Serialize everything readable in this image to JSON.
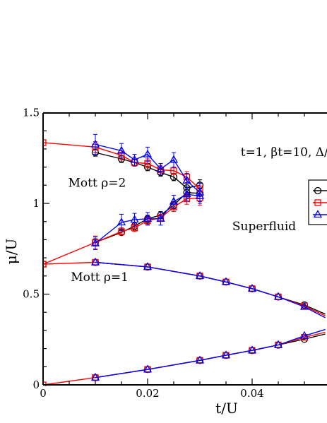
{
  "chart_data": {
    "type": "line",
    "xlabel": "t/U",
    "ylabel": "μ/U",
    "xlim": [
      0,
      0.054
    ],
    "ylim": [
      0,
      1.5
    ],
    "xticks": [
      {
        "v": 0,
        "label": "0"
      },
      {
        "v": 0.02,
        "label": "0.02"
      },
      {
        "v": 0.04,
        "label": "0.04"
      }
    ],
    "yticks": [
      {
        "v": 0,
        "label": "0"
      },
      {
        "v": 0.5,
        "label": "0.5"
      },
      {
        "v": 1,
        "label": "1"
      },
      {
        "v": 1.5,
        "label": "1.5"
      }
    ],
    "annotations": [
      {
        "text": "t=1, βt=10, Δ/",
        "x": 0.0378,
        "y": 1.285,
        "size": 17
      },
      {
        "text": "Mott ρ=2",
        "x": 0.0048,
        "y": 1.115,
        "size": 17
      },
      {
        "text": "Superfluid",
        "x": 0.0362,
        "y": 0.875,
        "size": 17
      },
      {
        "text": "Mott ρ=1",
        "x": 0.0053,
        "y": 0.595,
        "size": 17
      }
    ],
    "series": [
      {
        "marker": "circle",
        "color": "#000000",
        "lines": [
          [
            [
              0.01,
              1.28
            ],
            [
              0.015,
              1.245
            ],
            [
              0.0175,
              1.225
            ],
            [
              0.02,
              1.2
            ],
            [
              0.0225,
              1.17
            ],
            [
              0.025,
              1.145
            ],
            [
              0.0275,
              1.085
            ],
            [
              0.03,
              1.1
            ]
          ],
          [
            [
              0.01,
              0.785
            ],
            [
              0.015,
              0.84
            ],
            [
              0.0175,
              0.875
            ],
            [
              0.02,
              0.915
            ],
            [
              0.0225,
              0.935
            ],
            [
              0.025,
              0.99
            ],
            [
              0.0275,
              1.06
            ],
            [
              0.03,
              1.055
            ]
          ],
          [
            [
              0.01,
              0.675
            ],
            [
              0.02,
              0.65
            ],
            [
              0.03,
              0.6
            ],
            [
              0.035,
              0.567
            ],
            [
              0.04,
              0.53
            ],
            [
              0.045,
              0.485
            ],
            [
              0.05,
              0.44
            ],
            [
              0.054,
              0.39
            ]
          ],
          [
            [
              0.01,
              0.04
            ],
            [
              0.02,
              0.085
            ],
            [
              0.03,
              0.135
            ],
            [
              0.035,
              0.163
            ],
            [
              0.04,
              0.19
            ],
            [
              0.045,
              0.22
            ],
            [
              0.05,
              0.252
            ],
            [
              0.054,
              0.28
            ]
          ]
        ],
        "errors": [
          [
            0.01,
            1.28,
            0.02
          ],
          [
            0.015,
            1.245,
            0.02
          ],
          [
            0.0175,
            1.225,
            0.02
          ],
          [
            0.02,
            1.2,
            0.02
          ],
          [
            0.0225,
            1.17,
            0.02
          ],
          [
            0.025,
            1.145,
            0.02
          ],
          [
            0.0275,
            1.085,
            0.03
          ],
          [
            0.03,
            1.1,
            0.03
          ],
          [
            0.01,
            0.785,
            0.02
          ],
          [
            0.015,
            0.84,
            0.015
          ],
          [
            0.0175,
            0.875,
            0.02
          ],
          [
            0.02,
            0.915,
            0.02
          ],
          [
            0.0225,
            0.935,
            0.02
          ],
          [
            0.025,
            0.99,
            0.02
          ],
          [
            0.0275,
            1.06,
            0.03
          ],
          [
            0.03,
            1.055,
            0.03
          ]
        ]
      },
      {
        "marker": "square",
        "color": "#ff0000",
        "lines": [
          [
            [
              0,
              1.335
            ],
            [
              0.01,
              1.31
            ],
            [
              0.015,
              1.265
            ],
            [
              0.0175,
              1.225
            ],
            [
              0.02,
              1.22
            ],
            [
              0.0225,
              1.185
            ],
            [
              0.025,
              1.18
            ],
            [
              0.0275,
              1.145
            ],
            [
              0.03,
              1.08
            ]
          ],
          [
            [
              0,
              0.665
            ],
            [
              0.01,
              0.785
            ],
            [
              0.015,
              0.845
            ],
            [
              0.0175,
              0.865
            ],
            [
              0.02,
              0.905
            ],
            [
              0.0225,
              0.92
            ],
            [
              0.025,
              0.98
            ],
            [
              0.0275,
              1.025
            ],
            [
              0.03,
              1.03
            ]
          ],
          [
            [
              0,
              0.665
            ],
            [
              0.01,
              0.675
            ],
            [
              0.02,
              0.65
            ],
            [
              0.03,
              0.6
            ],
            [
              0.035,
              0.567
            ],
            [
              0.04,
              0.53
            ],
            [
              0.045,
              0.485
            ],
            [
              0.05,
              0.435
            ],
            [
              0.054,
              0.38
            ]
          ],
          [
            [
              0,
              0
            ],
            [
              0.01,
              0.04
            ],
            [
              0.02,
              0.085
            ],
            [
              0.03,
              0.135
            ],
            [
              0.035,
              0.163
            ],
            [
              0.04,
              0.19
            ],
            [
              0.045,
              0.22
            ],
            [
              0.05,
              0.262
            ],
            [
              0.054,
              0.29
            ]
          ]
        ],
        "errors": [
          [
            0.01,
            1.31,
            0.03
          ],
          [
            0.015,
            1.265,
            0.025
          ],
          [
            0.0175,
            1.225,
            0.02
          ],
          [
            0.02,
            1.22,
            0.025
          ],
          [
            0.0225,
            1.185,
            0.025
          ],
          [
            0.025,
            1.18,
            0.02
          ],
          [
            0.0275,
            1.145,
            0.03
          ],
          [
            0.03,
            1.08,
            0.03
          ],
          [
            0.01,
            0.785,
            0.035
          ],
          [
            0.015,
            0.845,
            0.02
          ],
          [
            0.0175,
            0.865,
            0.02
          ],
          [
            0.02,
            0.905,
            0.02
          ],
          [
            0.0225,
            0.92,
            0.02
          ],
          [
            0.025,
            0.98,
            0.025
          ],
          [
            0.0275,
            1.025,
            0.03
          ],
          [
            0.03,
            1.03,
            0.04
          ]
        ]
      },
      {
        "marker": "triangle",
        "color": "#0000ff",
        "lines": [
          [
            [
              0.01,
              1.325
            ],
            [
              0.015,
              1.29
            ],
            [
              0.0175,
              1.24
            ],
            [
              0.02,
              1.27
            ],
            [
              0.0225,
              1.19
            ],
            [
              0.025,
              1.24
            ],
            [
              0.0275,
              1.125
            ],
            [
              0.03,
              1.06
            ]
          ],
          [
            [
              0.01,
              0.78
            ],
            [
              0.015,
              0.895
            ],
            [
              0.0175,
              0.91
            ],
            [
              0.02,
              0.915
            ],
            [
              0.0225,
              0.915
            ],
            [
              0.025,
              1.01
            ],
            [
              0.0275,
              1.05
            ],
            [
              0.03,
              1.04
            ]
          ],
          [
            [
              0.01,
              0.675
            ],
            [
              0.02,
              0.65
            ],
            [
              0.03,
              0.6
            ],
            [
              0.035,
              0.567
            ],
            [
              0.04,
              0.53
            ],
            [
              0.045,
              0.485
            ],
            [
              0.05,
              0.43
            ],
            [
              0.054,
              0.37
            ]
          ],
          [
            [
              0.01,
              0.04
            ],
            [
              0.02,
              0.085
            ],
            [
              0.03,
              0.135
            ],
            [
              0.035,
              0.163
            ],
            [
              0.04,
              0.19
            ],
            [
              0.045,
              0.22
            ],
            [
              0.05,
              0.27
            ],
            [
              0.054,
              0.305
            ]
          ]
        ],
        "errors": [
          [
            0.01,
            1.325,
            0.055
          ],
          [
            0.015,
            1.29,
            0.04
          ],
          [
            0.0175,
            1.24,
            0.03
          ],
          [
            0.02,
            1.27,
            0.04
          ],
          [
            0.0225,
            1.19,
            0.03
          ],
          [
            0.025,
            1.24,
            0.04
          ],
          [
            0.0275,
            1.125,
            0.04
          ],
          [
            0.03,
            1.06,
            0.05
          ],
          [
            0.01,
            0.78,
            0.035
          ],
          [
            0.015,
            0.895,
            0.045
          ],
          [
            0.0175,
            0.91,
            0.035
          ],
          [
            0.02,
            0.915,
            0.035
          ],
          [
            0.0225,
            0.915,
            0.035
          ],
          [
            0.025,
            1.01,
            0.035
          ],
          [
            0.0275,
            1.05,
            0.035
          ],
          [
            0.03,
            1.04,
            0.04
          ]
        ]
      }
    ],
    "legend": {
      "position": "right, clipped",
      "markers": [
        "circle",
        "square",
        "triangle"
      ]
    }
  }
}
